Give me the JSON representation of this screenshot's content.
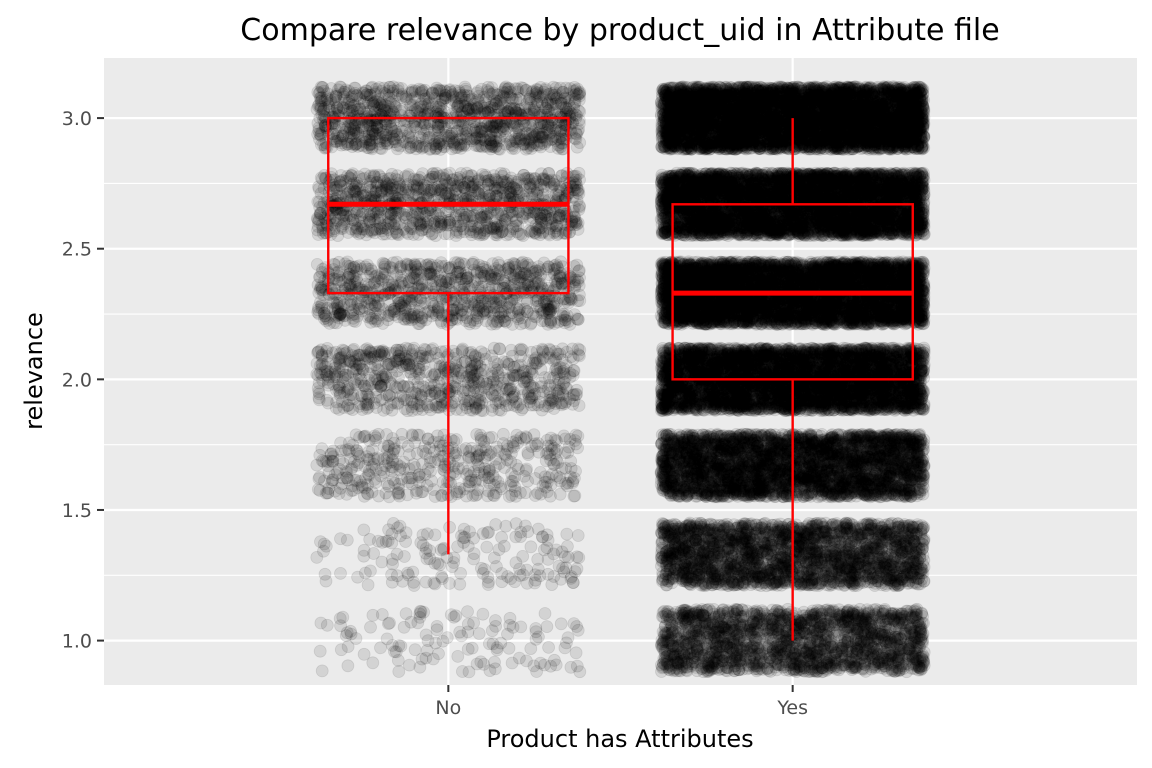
{
  "chart_data": {
    "type": "scatter",
    "subtype": "jitter points with boxplot overlay",
    "title": "Compare relevance by product_uid in Attribute file",
    "xlabel": "Product has Attributes",
    "ylabel": "relevance",
    "categories": [
      "No",
      "Yes"
    ],
    "y_ticks": [
      "1.0",
      "1.5",
      "2.0",
      "2.5",
      "3.0"
    ],
    "ylim": [
      0.83,
      3.23
    ],
    "relevance_levels": [
      1.0,
      1.33,
      1.67,
      2.0,
      2.33,
      2.67,
      3.0
    ],
    "jitter": {
      "x_fraction": 0.4,
      "y": 0.12
    },
    "point_counts": {
      "No": [
        120,
        160,
        420,
        700,
        850,
        1000,
        1100
      ],
      "Yes": [
        1900,
        2300,
        3300,
        4400,
        5000,
        4800,
        5200
      ]
    },
    "boxplots": [
      {
        "category": "No",
        "min": 1.33,
        "q1": 2.33,
        "median": 2.67,
        "q3": 3.0,
        "max": 3.0
      },
      {
        "category": "Yes",
        "min": 1.0,
        "q1": 2.0,
        "median": 2.33,
        "q3": 2.67,
        "max": 3.0
      }
    ],
    "grid": true,
    "legend": "none",
    "point_color": "#000000",
    "point_alpha": 0.1,
    "box_color": "#ff0000",
    "panel_background": "#ebebeb",
    "grid_color": "#ffffff"
  }
}
